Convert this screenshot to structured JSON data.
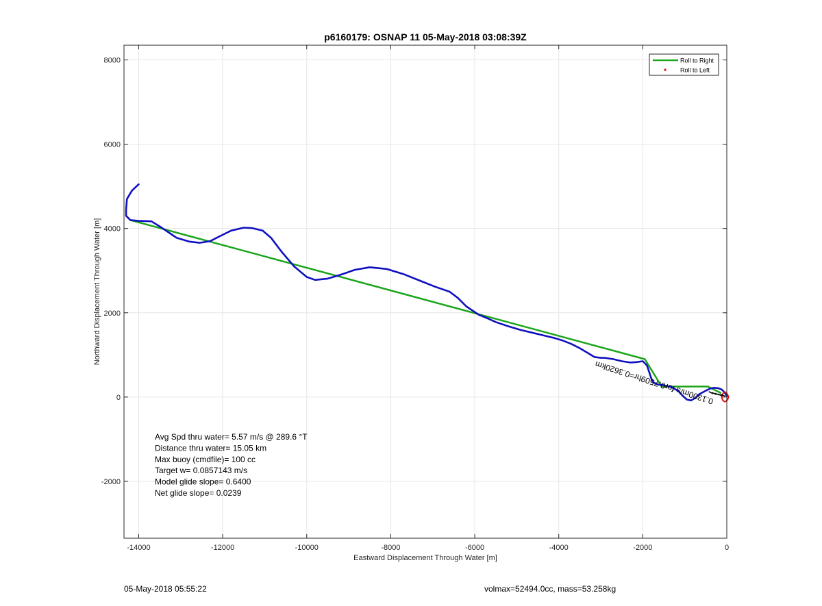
{
  "chart_data": {
    "type": "line",
    "title": "p6160179: OSNAP 11 05-May-2018 03:08:39Z",
    "xlabel": "Eastward Displacement Through Water [m]",
    "ylabel": "Northward Displacement Through Water [m]",
    "xlim": [
      -14350,
      0
    ],
    "ylim": [
      -3350,
      8350
    ],
    "xticks": [
      -14000,
      -12000,
      -10000,
      -8000,
      -6000,
      -4000,
      -2000,
      0
    ],
    "yticks": [
      -2000,
      0,
      2000,
      4000,
      6000,
      8000
    ],
    "grid": true,
    "legend_position": "top-right",
    "legend": [
      {
        "label": "Roll to Right",
        "color": "#1aa51a",
        "marker": "line"
      },
      {
        "label": "Roll to Left",
        "color": "#e01010",
        "marker": "dot"
      }
    ],
    "colors": {
      "track": "#1010c0",
      "roll_right": "#1aa51a",
      "roll_left": "#e01010",
      "annotation": "#000000"
    },
    "series": [
      {
        "name": "Roll to Right",
        "role": "green-straight-track",
        "x": [
          -14200,
          -1950,
          -1550,
          -450,
          -150
        ],
        "y": [
          4200,
          900,
          250,
          250,
          100
        ]
      },
      {
        "role": "blue-track",
        "x": [
          -14000,
          -14160,
          -14280,
          -14300,
          -14300,
          -14200,
          -14000,
          -13700,
          -13500,
          -13100,
          -12800,
          -12550,
          -12300,
          -12000,
          -11800,
          -11500,
          -11300,
          -11050,
          -10850,
          -10600,
          -10300,
          -10000,
          -9800,
          -9500,
          -9200,
          -8850,
          -8500,
          -8100,
          -7700,
          -7300,
          -6950,
          -6600,
          -6400,
          -6200,
          -5900,
          -5700,
          -5500,
          -5200,
          -4900,
          -4600,
          -4350,
          -4100,
          -3900,
          -3700,
          -3500,
          -3300,
          -3150,
          -3000,
          -2900,
          -2700,
          -2500,
          -2300,
          -2150,
          -2000,
          -1900,
          -1850,
          -1800,
          -1750,
          -1650,
          -1500,
          -1300,
          -1150,
          -1050,
          -950,
          -850,
          -750,
          -650,
          -500,
          -400,
          -300,
          -200,
          -120,
          -60,
          -20,
          0
        ],
        "y": [
          5050,
          4900,
          4700,
          4450,
          4300,
          4200,
          4180,
          4170,
          4050,
          3780,
          3690,
          3660,
          3700,
          3850,
          3950,
          4020,
          4010,
          3950,
          3780,
          3450,
          3100,
          2850,
          2780,
          2810,
          2900,
          3020,
          3080,
          3040,
          2920,
          2760,
          2620,
          2500,
          2350,
          2150,
          1950,
          1870,
          1780,
          1680,
          1590,
          1520,
          1460,
          1400,
          1340,
          1260,
          1160,
          1040,
          950,
          930,
          930,
          900,
          850,
          820,
          830,
          850,
          750,
          600,
          450,
          350,
          300,
          280,
          230,
          140,
          30,
          -60,
          -80,
          -20,
          70,
          150,
          200,
          220,
          210,
          180,
          120,
          60,
          20
        ]
      },
      {
        "name": "Roll to Left",
        "role": "red-loop",
        "x": [
          -60,
          -20,
          20,
          40,
          20,
          -20,
          -60,
          -100,
          -120,
          -100,
          -60
        ],
        "y": [
          120,
          110,
          60,
          0,
          -60,
          -100,
          -110,
          -70,
          0,
          70,
          120
        ]
      }
    ],
    "annotations": {
      "stats": [
        "Avg Spd thru water=  5.57 m/s @ 289.6 °T",
        "Distance thru water= 15.05 km",
        "Max buoy (cmdfile)= 100 cc",
        "Target w= 0.0857143 m/s",
        "Model glide slope= 0.6400",
        "Net glide slope= 0.0239"
      ],
      "rotated_label": "0.1300m/s for0.7509hr=0.3620km"
    }
  },
  "footer": {
    "timestamp": "05-May-2018 05:55:22",
    "summary": "volmax=52494.0cc, mass=53.258kg"
  }
}
